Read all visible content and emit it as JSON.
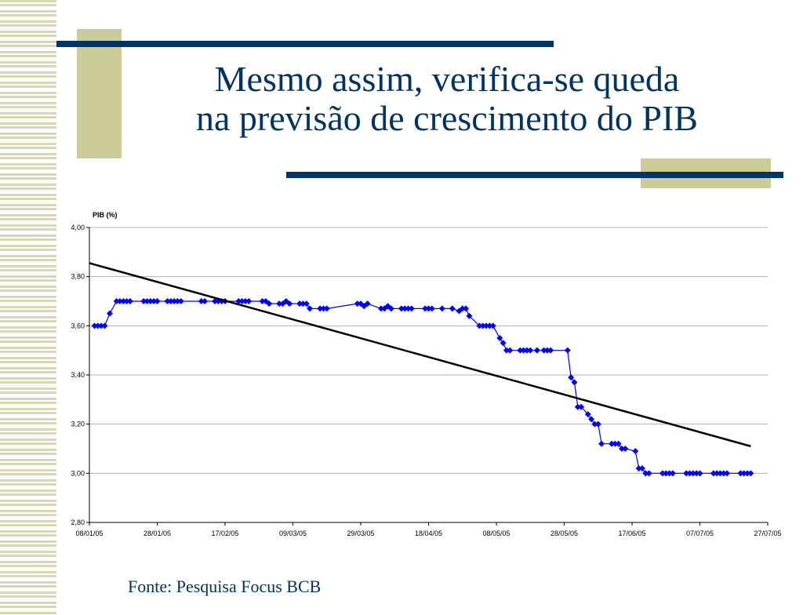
{
  "slide": {
    "title": "Mesmo assim, verifica-se queda\nna previsão de crescimento do PIB",
    "source": "Fonte: Pesquisa Focus BCB"
  },
  "colors": {
    "title": "#003366",
    "accent_bar": "#003366",
    "accent_block": "#cccc99",
    "series": "#0000ff",
    "trend": "#000000"
  },
  "chart_data": {
    "type": "line",
    "y_unit_label": "PIB (%)",
    "ylim": [
      2.8,
      4.0
    ],
    "y_ticks": [
      "4,00",
      "3,80",
      "3,60",
      "3,40",
      "3,20",
      "3,00",
      "2,80"
    ],
    "y_tick_values": [
      4.0,
      3.8,
      3.6,
      3.4,
      3.2,
      3.0,
      2.8
    ],
    "x_ticks": [
      "08/01/05",
      "28/01/05",
      "17/02/05",
      "09/03/05",
      "29/03/05",
      "18/04/05",
      "08/05/05",
      "28/05/05",
      "17/06/05",
      "07/07/05",
      "27/07/05"
    ],
    "x_tick_days": [
      0,
      20,
      40,
      60,
      80,
      100,
      120,
      140,
      160,
      180,
      200
    ],
    "xlim_days": [
      0,
      200
    ],
    "grid": "horizontal",
    "legend": "none",
    "series": [
      {
        "marker": "diamond",
        "points": [
          [
            1.5,
            3.6
          ],
          [
            2.5,
            3.6
          ],
          [
            3.5,
            3.6
          ],
          [
            4.5,
            3.6
          ],
          [
            6,
            3.65
          ],
          [
            8,
            3.7
          ],
          [
            9,
            3.7
          ],
          [
            10,
            3.7
          ],
          [
            11,
            3.7
          ],
          [
            12,
            3.7
          ],
          [
            16,
            3.7
          ],
          [
            17,
            3.7
          ],
          [
            18,
            3.7
          ],
          [
            19,
            3.7
          ],
          [
            20,
            3.7
          ],
          [
            23,
            3.7
          ],
          [
            24,
            3.7
          ],
          [
            25,
            3.7
          ],
          [
            26,
            3.7
          ],
          [
            27,
            3.7
          ],
          [
            33,
            3.7
          ],
          [
            34,
            3.7
          ],
          [
            37,
            3.7
          ],
          [
            38,
            3.7
          ],
          [
            39,
            3.7
          ],
          [
            40,
            3.7
          ],
          [
            44,
            3.7
          ],
          [
            45,
            3.7
          ],
          [
            46,
            3.7
          ],
          [
            47,
            3.7
          ],
          [
            51,
            3.7
          ],
          [
            52,
            3.7
          ],
          [
            53,
            3.69
          ],
          [
            56,
            3.69
          ],
          [
            57,
            3.69
          ],
          [
            58,
            3.7
          ],
          [
            59,
            3.69
          ],
          [
            62,
            3.69
          ],
          [
            63,
            3.69
          ],
          [
            64,
            3.69
          ],
          [
            65,
            3.67
          ],
          [
            68,
            3.67
          ],
          [
            69,
            3.67
          ],
          [
            70,
            3.67
          ],
          [
            79,
            3.69
          ],
          [
            80,
            3.69
          ],
          [
            81,
            3.68
          ],
          [
            82,
            3.69
          ],
          [
            86,
            3.67
          ],
          [
            87,
            3.67
          ],
          [
            88,
            3.68
          ],
          [
            89,
            3.67
          ],
          [
            92,
            3.67
          ],
          [
            93,
            3.67
          ],
          [
            94,
            3.67
          ],
          [
            95,
            3.67
          ],
          [
            99,
            3.67
          ],
          [
            100,
            3.67
          ],
          [
            101,
            3.67
          ],
          [
            104,
            3.67
          ],
          [
            107,
            3.67
          ],
          [
            109,
            3.66
          ],
          [
            110,
            3.67
          ],
          [
            111,
            3.67
          ],
          [
            112,
            3.64
          ],
          [
            115,
            3.6
          ],
          [
            116,
            3.6
          ],
          [
            117,
            3.6
          ],
          [
            118,
            3.6
          ],
          [
            119,
            3.6
          ],
          [
            121,
            3.55
          ],
          [
            122,
            3.53
          ],
          [
            123,
            3.5
          ],
          [
            124,
            3.5
          ],
          [
            127,
            3.5
          ],
          [
            128,
            3.5
          ],
          [
            129,
            3.5
          ],
          [
            130,
            3.5
          ],
          [
            132,
            3.5
          ],
          [
            134,
            3.5
          ],
          [
            135,
            3.5
          ],
          [
            136,
            3.5
          ],
          [
            141,
            3.5
          ],
          [
            142,
            3.39
          ],
          [
            143,
            3.37
          ],
          [
            144,
            3.27
          ],
          [
            145,
            3.27
          ],
          [
            147,
            3.24
          ],
          [
            148,
            3.22
          ],
          [
            149,
            3.2
          ],
          [
            150,
            3.2
          ],
          [
            151,
            3.12
          ],
          [
            154,
            3.12
          ],
          [
            155,
            3.12
          ],
          [
            156,
            3.12
          ],
          [
            157,
            3.1
          ],
          [
            158,
            3.1
          ],
          [
            161,
            3.09
          ],
          [
            162,
            3.02
          ],
          [
            163,
            3.02
          ],
          [
            164,
            3.0
          ],
          [
            165,
            3.0
          ],
          [
            169,
            3.0
          ],
          [
            170,
            3.0
          ],
          [
            171,
            3.0
          ],
          [
            172,
            3.0
          ],
          [
            176,
            3.0
          ],
          [
            177,
            3.0
          ],
          [
            178,
            3.0
          ],
          [
            179,
            3.0
          ],
          [
            180,
            3.0
          ],
          [
            184,
            3.0
          ],
          [
            185,
            3.0
          ],
          [
            186,
            3.0
          ],
          [
            187,
            3.0
          ],
          [
            188,
            3.0
          ],
          [
            192,
            3.0
          ],
          [
            193,
            3.0
          ],
          [
            194,
            3.0
          ],
          [
            195,
            3.0
          ]
        ]
      }
    ],
    "trendline": {
      "points": [
        [
          0,
          3.855
        ],
        [
          195,
          3.11
        ]
      ]
    }
  }
}
